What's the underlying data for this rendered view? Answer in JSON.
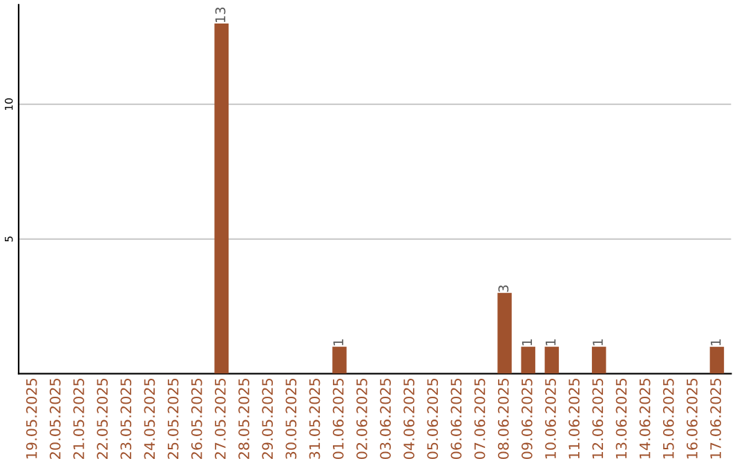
{
  "chart_data": {
    "type": "bar",
    "categories": [
      "19.05.2025",
      "20.05.2025",
      "21.05.2025",
      "22.05.2025",
      "23.05.2025",
      "24.05.2025",
      "25.05.2025",
      "26.05.2025",
      "27.05.2025",
      "28.05.2025",
      "29.05.2025",
      "30.05.2025",
      "31.05.2025",
      "01.06.2025",
      "02.06.2025",
      "03.06.2025",
      "04.06.2025",
      "05.06.2025",
      "06.06.2025",
      "07.06.2025",
      "08.06.2025",
      "09.06.2025",
      "10.06.2025",
      "11.06.2025",
      "12.06.2025",
      "13.06.2025",
      "14.06.2025",
      "15.06.2025",
      "16.06.2025",
      "17.06.2025"
    ],
    "values": [
      0,
      0,
      0,
      0,
      0,
      0,
      0,
      0,
      13,
      0,
      0,
      0,
      0,
      1,
      0,
      0,
      0,
      0,
      0,
      0,
      3,
      1,
      1,
      0,
      1,
      0,
      0,
      0,
      0,
      1
    ],
    "value_labels": [
      null,
      null,
      null,
      null,
      null,
      null,
      null,
      null,
      "13",
      null,
      null,
      null,
      null,
      "1",
      null,
      null,
      null,
      null,
      null,
      null,
      "3",
      "1",
      "1",
      null,
      "1",
      null,
      null,
      null,
      null,
      "1"
    ],
    "color": "#a0522d",
    "ylim": [
      0,
      13.7
    ],
    "yticks": [
      5,
      10
    ],
    "grid": "y",
    "legend": false
  }
}
